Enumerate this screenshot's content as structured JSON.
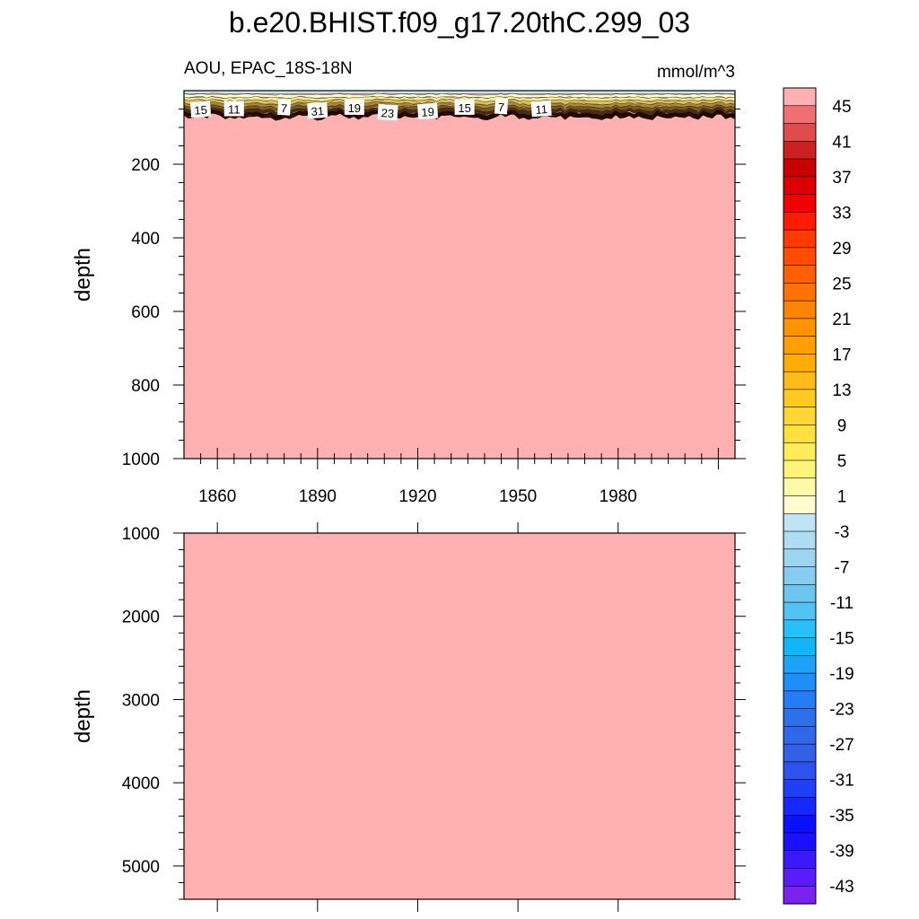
{
  "chart_data": [
    {
      "type": "heatmap",
      "title": "b.e20.BHIST.f09_g17.20thC.299_03",
      "left_subtitle": "AOU, EPAC_18S-18N",
      "right_subtitle": "mmol/m^3",
      "xlabel": "",
      "ylabel": "depth",
      "xlim": [
        1850,
        2015
      ],
      "ylim": [
        1000,
        0
      ],
      "xticks": [
        1860,
        1890,
        1920,
        1950,
        1980
      ],
      "yticks": [
        200,
        400,
        600,
        800,
        1000
      ],
      "background_value": 45,
      "surface_layer_depth_range": [
        0,
        70
      ],
      "contour_labels": [
        {
          "x": 1855,
          "depth": 52,
          "label": "15"
        },
        {
          "x": 1865,
          "depth": 50,
          "label": "11"
        },
        {
          "x": 1880,
          "depth": 47,
          "label": "7"
        },
        {
          "x": 1890,
          "depth": 55,
          "label": "31"
        },
        {
          "x": 1901,
          "depth": 46,
          "label": "19"
        },
        {
          "x": 1911,
          "depth": 60,
          "label": "23"
        },
        {
          "x": 1923,
          "depth": 57,
          "label": "19"
        },
        {
          "x": 1934,
          "depth": 46,
          "label": "15"
        },
        {
          "x": 1945,
          "depth": 44,
          "label": "7"
        },
        {
          "x": 1957,
          "depth": 50,
          "label": "11"
        }
      ]
    },
    {
      "type": "heatmap",
      "ylabel": "depth",
      "xlim": [
        1850,
        2015
      ],
      "ylim": [
        5400,
        1000
      ],
      "yticks": [
        1000,
        2000,
        3000,
        4000,
        5000
      ],
      "background_value": 45
    }
  ],
  "colorbar": {
    "levels": [
      45,
      43,
      41,
      39,
      37,
      35,
      33,
      31,
      29,
      27,
      25,
      23,
      21,
      19,
      17,
      15,
      13,
      11,
      9,
      7,
      5,
      3,
      1,
      -1,
      -3,
      -5,
      -7,
      -9,
      -11,
      -13,
      -15,
      -17,
      -19,
      -21,
      -23,
      -25,
      -27,
      -29,
      -31,
      -33,
      -35,
      -37,
      -39,
      -41,
      -43,
      -45
    ],
    "labels": [
      "45",
      "41",
      "37",
      "33",
      "29",
      "25",
      "21",
      "17",
      "13",
      "9",
      "5",
      "1",
      "-3",
      "-7",
      "-11",
      "-15",
      "-19",
      "-23",
      "-27",
      "-31",
      "-35",
      "-39",
      "-43"
    ],
    "colors": [
      "#ffb0b0",
      "#ef7070",
      "#e04b4b",
      "#cc2121",
      "#c80000",
      "#dc0000",
      "#f00000",
      "#ff1a00",
      "#ff3a00",
      "#ff4c00",
      "#ff5f00",
      "#ff7200",
      "#ff8500",
      "#ff9400",
      "#ffa000",
      "#ffad00",
      "#ffbb1a",
      "#ffca20",
      "#ffd633",
      "#ffe040",
      "#ffec5a",
      "#fff37a",
      "#fff9a8",
      "#fffdd0",
      "#c0e4f5",
      "#aedcf2",
      "#9dd4f0",
      "#88ccf0",
      "#6dc6f0",
      "#55c2f5",
      "#28c0f8",
      "#10b6f8",
      "#1ca2f8",
      "#1e8ef8",
      "#267cf2",
      "#2c70ea",
      "#3068e8",
      "#3460e4",
      "#2c52f0",
      "#2040f8",
      "#1428ff",
      "#0a10ff",
      "#1a10ff",
      "#3c18ff",
      "#5a1cff",
      "#7c22f0"
    ]
  }
}
